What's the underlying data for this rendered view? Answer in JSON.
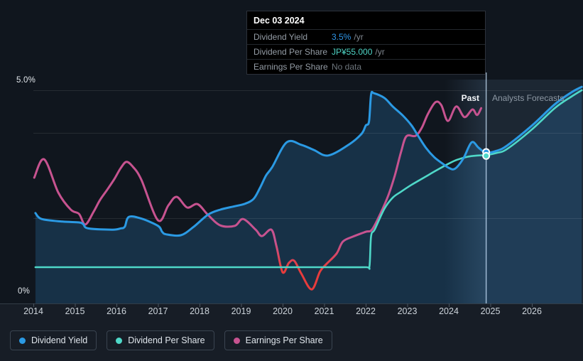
{
  "axis": {
    "y_top_label": "5.0%",
    "y_bottom_label": "0%",
    "years": [
      "2014",
      "2015",
      "2016",
      "2017",
      "2018",
      "2019",
      "2020",
      "2021",
      "2022",
      "2023",
      "2024",
      "2025",
      "2026"
    ]
  },
  "annotations": {
    "past_label": "Past",
    "forecast_label": "Analysts Forecasts"
  },
  "tooltip": {
    "date": "Dec 03 2024",
    "rows": [
      {
        "label": "Dividend Yield",
        "value": "3.5%",
        "suffix": "/yr",
        "value_color": "#2e96e8"
      },
      {
        "label": "Dividend Per Share",
        "value": "JP¥55.000",
        "suffix": "/yr",
        "value_color": "#4fd4c5"
      },
      {
        "label": "Earnings Per Share",
        "value": "No data",
        "suffix": "",
        "value_color": "#6d757c"
      }
    ]
  },
  "legend": {
    "items": [
      {
        "label": "Dividend Yield",
        "color": "#2b9ae4"
      },
      {
        "label": "Dividend Per Share",
        "color": "#4fd8c8"
      },
      {
        "label": "Earnings Per Share",
        "color": "#c75390"
      }
    ]
  },
  "colors": {
    "page_bg": "#171d26",
    "plot_bg": "#10161e",
    "forecast_bg": "#1c2733",
    "band_highlight": "rgba(130,185,235,0.16)",
    "grid": "rgba(255,255,255,0.09)",
    "axis_line": "#323c46",
    "tick": "#4a545f",
    "hover_line": "rgba(200,225,250,0.75)",
    "yield_blue": "#2b9ae4",
    "dps_teal": "#4fd8c8",
    "eps_pink": "#c75390",
    "eps_negative_red": "#e73c3c",
    "area_fill": "rgba(43,122,183,0.27)"
  },
  "chart_data": {
    "type": "line",
    "x_range": [
      2014,
      2027.2
    ],
    "y_axis": {
      "min": 0,
      "max": 5,
      "unit": "%",
      "gridlines_pct": [
        5,
        4,
        2
      ],
      "top_tick_label": "5.0%",
      "bottom_tick_label": "0%"
    },
    "x_tick_years": [
      2014,
      2015,
      2016,
      2017,
      2018,
      2019,
      2020,
      2021,
      2022,
      2023,
      2024,
      2025,
      2026
    ],
    "forecast_divider_year": 2024.9,
    "highlight_band_years": [
      2023.9,
      2024.9
    ],
    "legend_position": "bottom-left",
    "grid": true,
    "hover": {
      "date": "Dec 03 2024",
      "year": 2024.9,
      "yield_pct": 3.5,
      "dps_value": "JP¥55.000",
      "eps_value": "No data",
      "yield_marker_pct": 3.55,
      "dps_marker_pct": 3.46
    },
    "series": [
      {
        "name": "Dividend Yield",
        "unit": "% /yr",
        "color": "#2b9ae4",
        "area": true,
        "points": [
          [
            2014.05,
            2.12
          ],
          [
            2014.2,
            1.98
          ],
          [
            2014.7,
            1.92
          ],
          [
            2015.1,
            1.9
          ],
          [
            2015.2,
            1.86
          ],
          [
            2015.32,
            1.76
          ],
          [
            2015.9,
            1.73
          ],
          [
            2016.1,
            1.76
          ],
          [
            2016.2,
            1.8
          ],
          [
            2016.3,
            2.03
          ],
          [
            2016.6,
            1.99
          ],
          [
            2017.0,
            1.82
          ],
          [
            2017.1,
            1.68
          ],
          [
            2017.2,
            1.62
          ],
          [
            2017.55,
            1.6
          ],
          [
            2017.85,
            1.79
          ],
          [
            2018.2,
            2.08
          ],
          [
            2018.5,
            2.2
          ],
          [
            2018.85,
            2.28
          ],
          [
            2019.1,
            2.34
          ],
          [
            2019.3,
            2.45
          ],
          [
            2019.45,
            2.7
          ],
          [
            2019.6,
            3.0
          ],
          [
            2019.75,
            3.2
          ],
          [
            2020.1,
            3.78
          ],
          [
            2020.45,
            3.72
          ],
          [
            2020.75,
            3.6
          ],
          [
            2021.1,
            3.47
          ],
          [
            2021.6,
            3.73
          ],
          [
            2021.9,
            3.98
          ],
          [
            2022.0,
            4.17
          ],
          [
            2022.08,
            4.27
          ],
          [
            2022.13,
            4.9
          ],
          [
            2022.2,
            4.93
          ],
          [
            2022.45,
            4.82
          ],
          [
            2022.65,
            4.62
          ],
          [
            2022.9,
            4.4
          ],
          [
            2023.1,
            4.18
          ],
          [
            2023.25,
            3.95
          ],
          [
            2023.45,
            3.65
          ],
          [
            2023.65,
            3.43
          ],
          [
            2023.85,
            3.28
          ],
          [
            2024.0,
            3.18
          ],
          [
            2024.15,
            3.16
          ],
          [
            2024.35,
            3.4
          ],
          [
            2024.55,
            3.78
          ],
          [
            2024.72,
            3.65
          ],
          [
            2024.9,
            3.53
          ],
          [
            2025.15,
            3.58
          ],
          [
            2025.4,
            3.7
          ],
          [
            2026.0,
            4.17
          ],
          [
            2026.55,
            4.67
          ],
          [
            2026.95,
            4.95
          ],
          [
            2027.2,
            5.08
          ]
        ]
      },
      {
        "name": "Dividend Per Share",
        "unit": "JP¥ /yr (plotted on 0-5 visual scale)",
        "color": "#4fd8c8",
        "area": false,
        "points": [
          [
            2014.05,
            0.85
          ],
          [
            2015.5,
            0.85
          ],
          [
            2017.0,
            0.85
          ],
          [
            2018.5,
            0.85
          ],
          [
            2020.0,
            0.85
          ],
          [
            2021.2,
            0.85
          ],
          [
            2022.0,
            0.85
          ],
          [
            2022.09,
            0.87
          ],
          [
            2022.13,
            1.58
          ],
          [
            2022.22,
            1.74
          ],
          [
            2022.45,
            2.22
          ],
          [
            2022.65,
            2.48
          ],
          [
            2022.85,
            2.62
          ],
          [
            2023.1,
            2.78
          ],
          [
            2023.4,
            2.95
          ],
          [
            2023.7,
            3.12
          ],
          [
            2024.0,
            3.28
          ],
          [
            2024.2,
            3.37
          ],
          [
            2024.45,
            3.44
          ],
          [
            2024.7,
            3.47
          ],
          [
            2024.9,
            3.48
          ],
          [
            2025.15,
            3.53
          ],
          [
            2025.4,
            3.62
          ],
          [
            2026.0,
            4.08
          ],
          [
            2026.55,
            4.58
          ],
          [
            2026.95,
            4.85
          ],
          [
            2027.2,
            5.0
          ]
        ]
      },
      {
        "name": "Earnings Per Share",
        "unit": "plotted on 0-5 visual scale",
        "color": "#c75390",
        "negative_color": "#e73c3c",
        "gradient_pct_range": [
          1.45,
          0.85
        ],
        "area": false,
        "points": [
          [
            2014.02,
            2.95
          ],
          [
            2014.26,
            3.38
          ],
          [
            2014.6,
            2.6
          ],
          [
            2014.9,
            2.2
          ],
          [
            2015.1,
            2.1
          ],
          [
            2015.25,
            1.85
          ],
          [
            2015.45,
            2.15
          ],
          [
            2015.6,
            2.42
          ],
          [
            2015.78,
            2.67
          ],
          [
            2015.95,
            2.92
          ],
          [
            2016.1,
            3.17
          ],
          [
            2016.24,
            3.32
          ],
          [
            2016.4,
            3.2
          ],
          [
            2016.6,
            2.9
          ],
          [
            2017.0,
            1.95
          ],
          [
            2017.25,
            2.3
          ],
          [
            2017.45,
            2.5
          ],
          [
            2017.7,
            2.25
          ],
          [
            2017.95,
            2.33
          ],
          [
            2018.2,
            2.08
          ],
          [
            2018.5,
            1.83
          ],
          [
            2018.85,
            1.82
          ],
          [
            2019.05,
            1.98
          ],
          [
            2019.35,
            1.73
          ],
          [
            2019.5,
            1.58
          ],
          [
            2019.73,
            1.73
          ],
          [
            2019.85,
            1.35
          ],
          [
            2020.0,
            0.73
          ],
          [
            2020.15,
            0.95
          ],
          [
            2020.28,
            1.0
          ],
          [
            2020.45,
            0.7
          ],
          [
            2020.7,
            0.33
          ],
          [
            2020.9,
            0.75
          ],
          [
            2021.05,
            0.92
          ],
          [
            2021.3,
            1.17
          ],
          [
            2021.45,
            1.45
          ],
          [
            2021.7,
            1.57
          ],
          [
            2022.0,
            1.68
          ],
          [
            2022.15,
            1.73
          ],
          [
            2022.35,
            2.1
          ],
          [
            2022.55,
            2.55
          ],
          [
            2022.7,
            3.0
          ],
          [
            2022.85,
            3.55
          ],
          [
            2022.98,
            3.92
          ],
          [
            2023.2,
            3.93
          ],
          [
            2023.35,
            4.12
          ],
          [
            2023.5,
            4.45
          ],
          [
            2023.68,
            4.72
          ],
          [
            2023.82,
            4.65
          ],
          [
            2023.98,
            4.28
          ],
          [
            2024.18,
            4.62
          ],
          [
            2024.38,
            4.37
          ],
          [
            2024.57,
            4.55
          ],
          [
            2024.68,
            4.42
          ],
          [
            2024.78,
            4.58
          ]
        ]
      }
    ]
  }
}
